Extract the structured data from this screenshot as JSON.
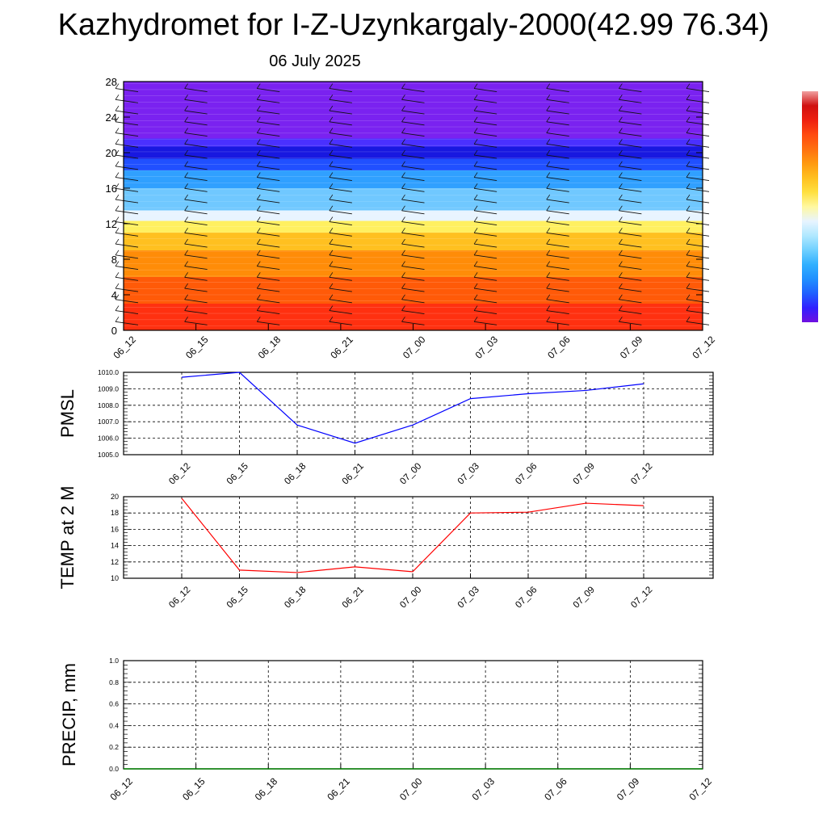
{
  "title": "Kazhydromet for I-Z-Uzynkargaly-2000(42.99 76.34)",
  "date": "06 July 2025",
  "chart_data": [
    {
      "type": "heatmap",
      "title": "",
      "ylabel": "",
      "x_ticks": [
        "06_12",
        "06_15",
        "06_18",
        "06_21",
        "07_00",
        "07_03",
        "07_06",
        "07_09",
        "07_12"
      ],
      "y_ticks": [
        0,
        4,
        8,
        12,
        16,
        20,
        24,
        28
      ],
      "ylim": [
        0,
        28
      ],
      "bands": [
        {
          "from": 0,
          "to": 3,
          "color": "#ff3010"
        },
        {
          "from": 3,
          "to": 6,
          "color": "#ff5a08"
        },
        {
          "from": 6,
          "to": 9,
          "color": "#ff8c08"
        },
        {
          "from": 9,
          "to": 11,
          "color": "#ffc020"
        },
        {
          "from": 11,
          "to": 12.3,
          "color": "#fff060"
        },
        {
          "from": 12.3,
          "to": 13.5,
          "color": "#e8f4ff"
        },
        {
          "from": 13.5,
          "to": 16,
          "color": "#70c8ff"
        },
        {
          "from": 16,
          "to": 18,
          "color": "#30a0ff"
        },
        {
          "from": 18,
          "to": 19.3,
          "color": "#2050ff"
        },
        {
          "from": 19.3,
          "to": 20.7,
          "color": "#1818e0"
        },
        {
          "from": 20.7,
          "to": 21.6,
          "color": "#4a30ff"
        },
        {
          "from": 21.6,
          "to": 28,
          "color": "#7a22f0"
        }
      ],
      "wind_barb_columns": [
        "06_12",
        "06_15",
        "06_18",
        "06_21",
        "07_00",
        "07_03",
        "07_06",
        "07_09",
        "07_12"
      ],
      "colorbar": [
        "#7010e0",
        "#3020ff",
        "#2060ff",
        "#2090ff",
        "#30b0ff",
        "#70d0ff",
        "#b0e8ff",
        "#e8f4ff",
        "#fff8a0",
        "#ffe040",
        "#ffc020",
        "#ff9a10",
        "#ff7010",
        "#ff4a10",
        "#ee2010",
        "#d01010",
        "#f0a0a0"
      ]
    },
    {
      "type": "line",
      "ylabel": "PMSL",
      "categories": [
        "06_12",
        "06_15",
        "06_18",
        "06_21",
        "07_00",
        "07_03",
        "07_06",
        "07_09",
        "07_12"
      ],
      "series": [
        {
          "values": [
            1009.7,
            1010.0,
            1006.8,
            1005.7,
            1006.8,
            1008.4,
            1008.7,
            1008.9,
            1009.3
          ],
          "color": "#0000ff"
        }
      ],
      "y_ticks": [
        "1005.0",
        "1006.0",
        "1007.0",
        "1008.0",
        "1009.0",
        "1010.0"
      ],
      "ylim": [
        1005.0,
        1010.0
      ],
      "grid": true
    },
    {
      "type": "line",
      "ylabel": "TEMP at 2 M",
      "categories": [
        "06_12",
        "06_15",
        "06_18",
        "06_21",
        "07_00",
        "07_03",
        "07_06",
        "07_09",
        "07_12"
      ],
      "series": [
        {
          "values": [
            19.8,
            11.0,
            10.7,
            11.4,
            10.8,
            18.0,
            18.1,
            19.2,
            18.9
          ],
          "color": "#ff0000"
        }
      ],
      "y_ticks": [
        "10",
        "12",
        "14",
        "16",
        "18",
        "20"
      ],
      "ylim": [
        10,
        20
      ],
      "grid": true
    },
    {
      "type": "line",
      "ylabel": "PRECIP, mm",
      "categories": [
        "06_12",
        "06_15",
        "06_18",
        "06_21",
        "07_00",
        "07_03",
        "07_06",
        "07_09",
        "07_12"
      ],
      "series": [
        {
          "values": [
            0.0,
            0.0,
            0.0,
            0.0,
            0.0,
            0.0,
            0.0,
            0.0,
            0.0
          ],
          "color": "#008000"
        }
      ],
      "y_ticks": [
        "0.0",
        "0.2",
        "0.4",
        "0.6",
        "0.8",
        "1.0"
      ],
      "ylim": [
        0.0,
        1.0
      ],
      "grid": true
    }
  ]
}
